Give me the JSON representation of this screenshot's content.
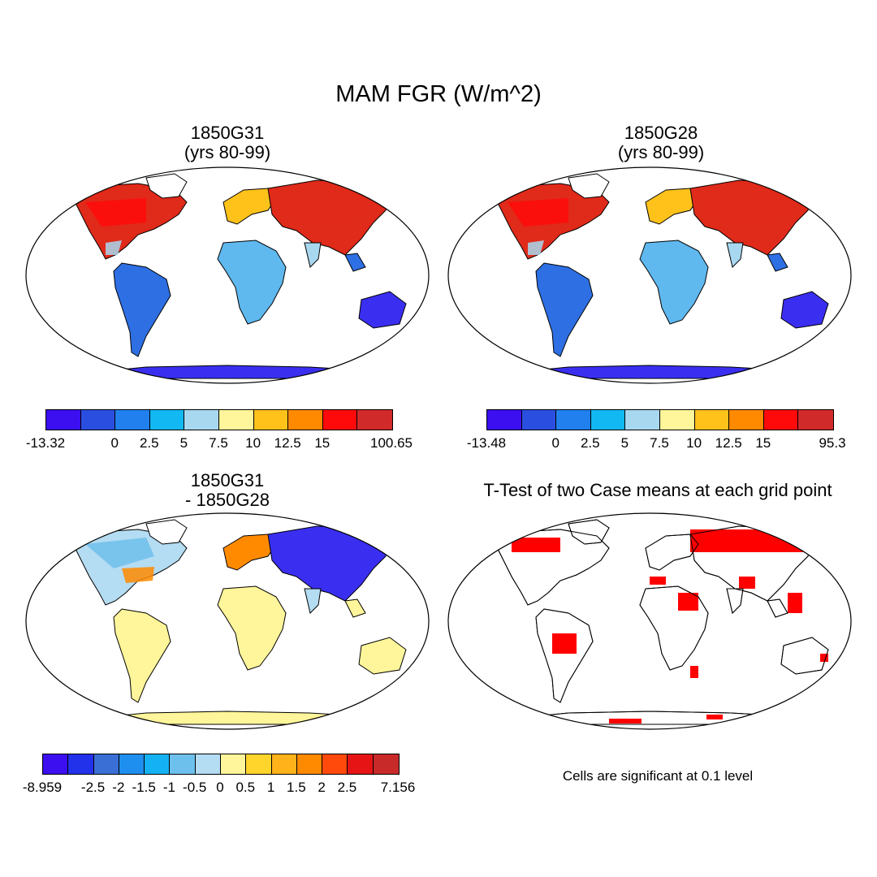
{
  "title": "MAM FGR (W/m^2)",
  "panels": {
    "top_left": {
      "title1": "1850G31",
      "title2": "(yrs 80-99)"
    },
    "top_right": {
      "title1": "1850G28",
      "title2": "(yrs 80-99)"
    },
    "bottom_left": {
      "title1": "1850G31",
      "title2": "- 1850G28"
    },
    "bottom_right": {
      "title1": "T-Test of two Case means at each grid point",
      "title2": ""
    }
  },
  "colorbars": {
    "top_left": {
      "colors": [
        "#3b0fef",
        "#2a4fe0",
        "#2180ee",
        "#12b8f2",
        "#a8d8f0",
        "#fff59a",
        "#ffc21b",
        "#ff8a00",
        "#ff0a0a",
        "#d12a2a"
      ],
      "labels": [
        "-13.32",
        "",
        "0",
        "2.5",
        "5",
        "7.5",
        "10",
        "12.5",
        "15",
        "",
        "100.65"
      ]
    },
    "top_right": {
      "colors": [
        "#3b0fef",
        "#2a4fe0",
        "#2180ee",
        "#12b8f2",
        "#a8d8f0",
        "#fff59a",
        "#ffc21b",
        "#ff8a00",
        "#ff0a0a",
        "#d12a2a"
      ],
      "labels": [
        "-13.48",
        "",
        "0",
        "2.5",
        "5",
        "7.5",
        "10",
        "12.5",
        "15",
        "",
        "95.3"
      ]
    },
    "bottom_left": {
      "colors": [
        "#3b0fef",
        "#2231ea",
        "#3a6fd6",
        "#1e8fee",
        "#14b2f5",
        "#6ec0ec",
        "#b4dcf2",
        "#fff59a",
        "#ffd42b",
        "#ffb21a",
        "#ff8a00",
        "#ff4a0c",
        "#e61414",
        "#c82a2a"
      ],
      "labels": [
        "-8.959",
        "",
        "-2.5",
        "-2",
        "-1.5",
        "-1",
        "-0.5",
        "0",
        "0.5",
        "1",
        "1.5",
        "2",
        "2.5",
        "",
        "7.156"
      ]
    }
  },
  "note": "Cells are significant at 0.1 level",
  "map_colors": {
    "ocean": "#ffffff",
    "land_cold": "#3a2ff0",
    "land_cool": "#2e6fe3",
    "land_mild": "#5fb8ee",
    "land_warm": "#ffc21b",
    "land_hot": "#e02a1a",
    "diff_pos": "#fff59a",
    "diff_neg": "#b4dcf2",
    "significant": "#ff0000"
  }
}
